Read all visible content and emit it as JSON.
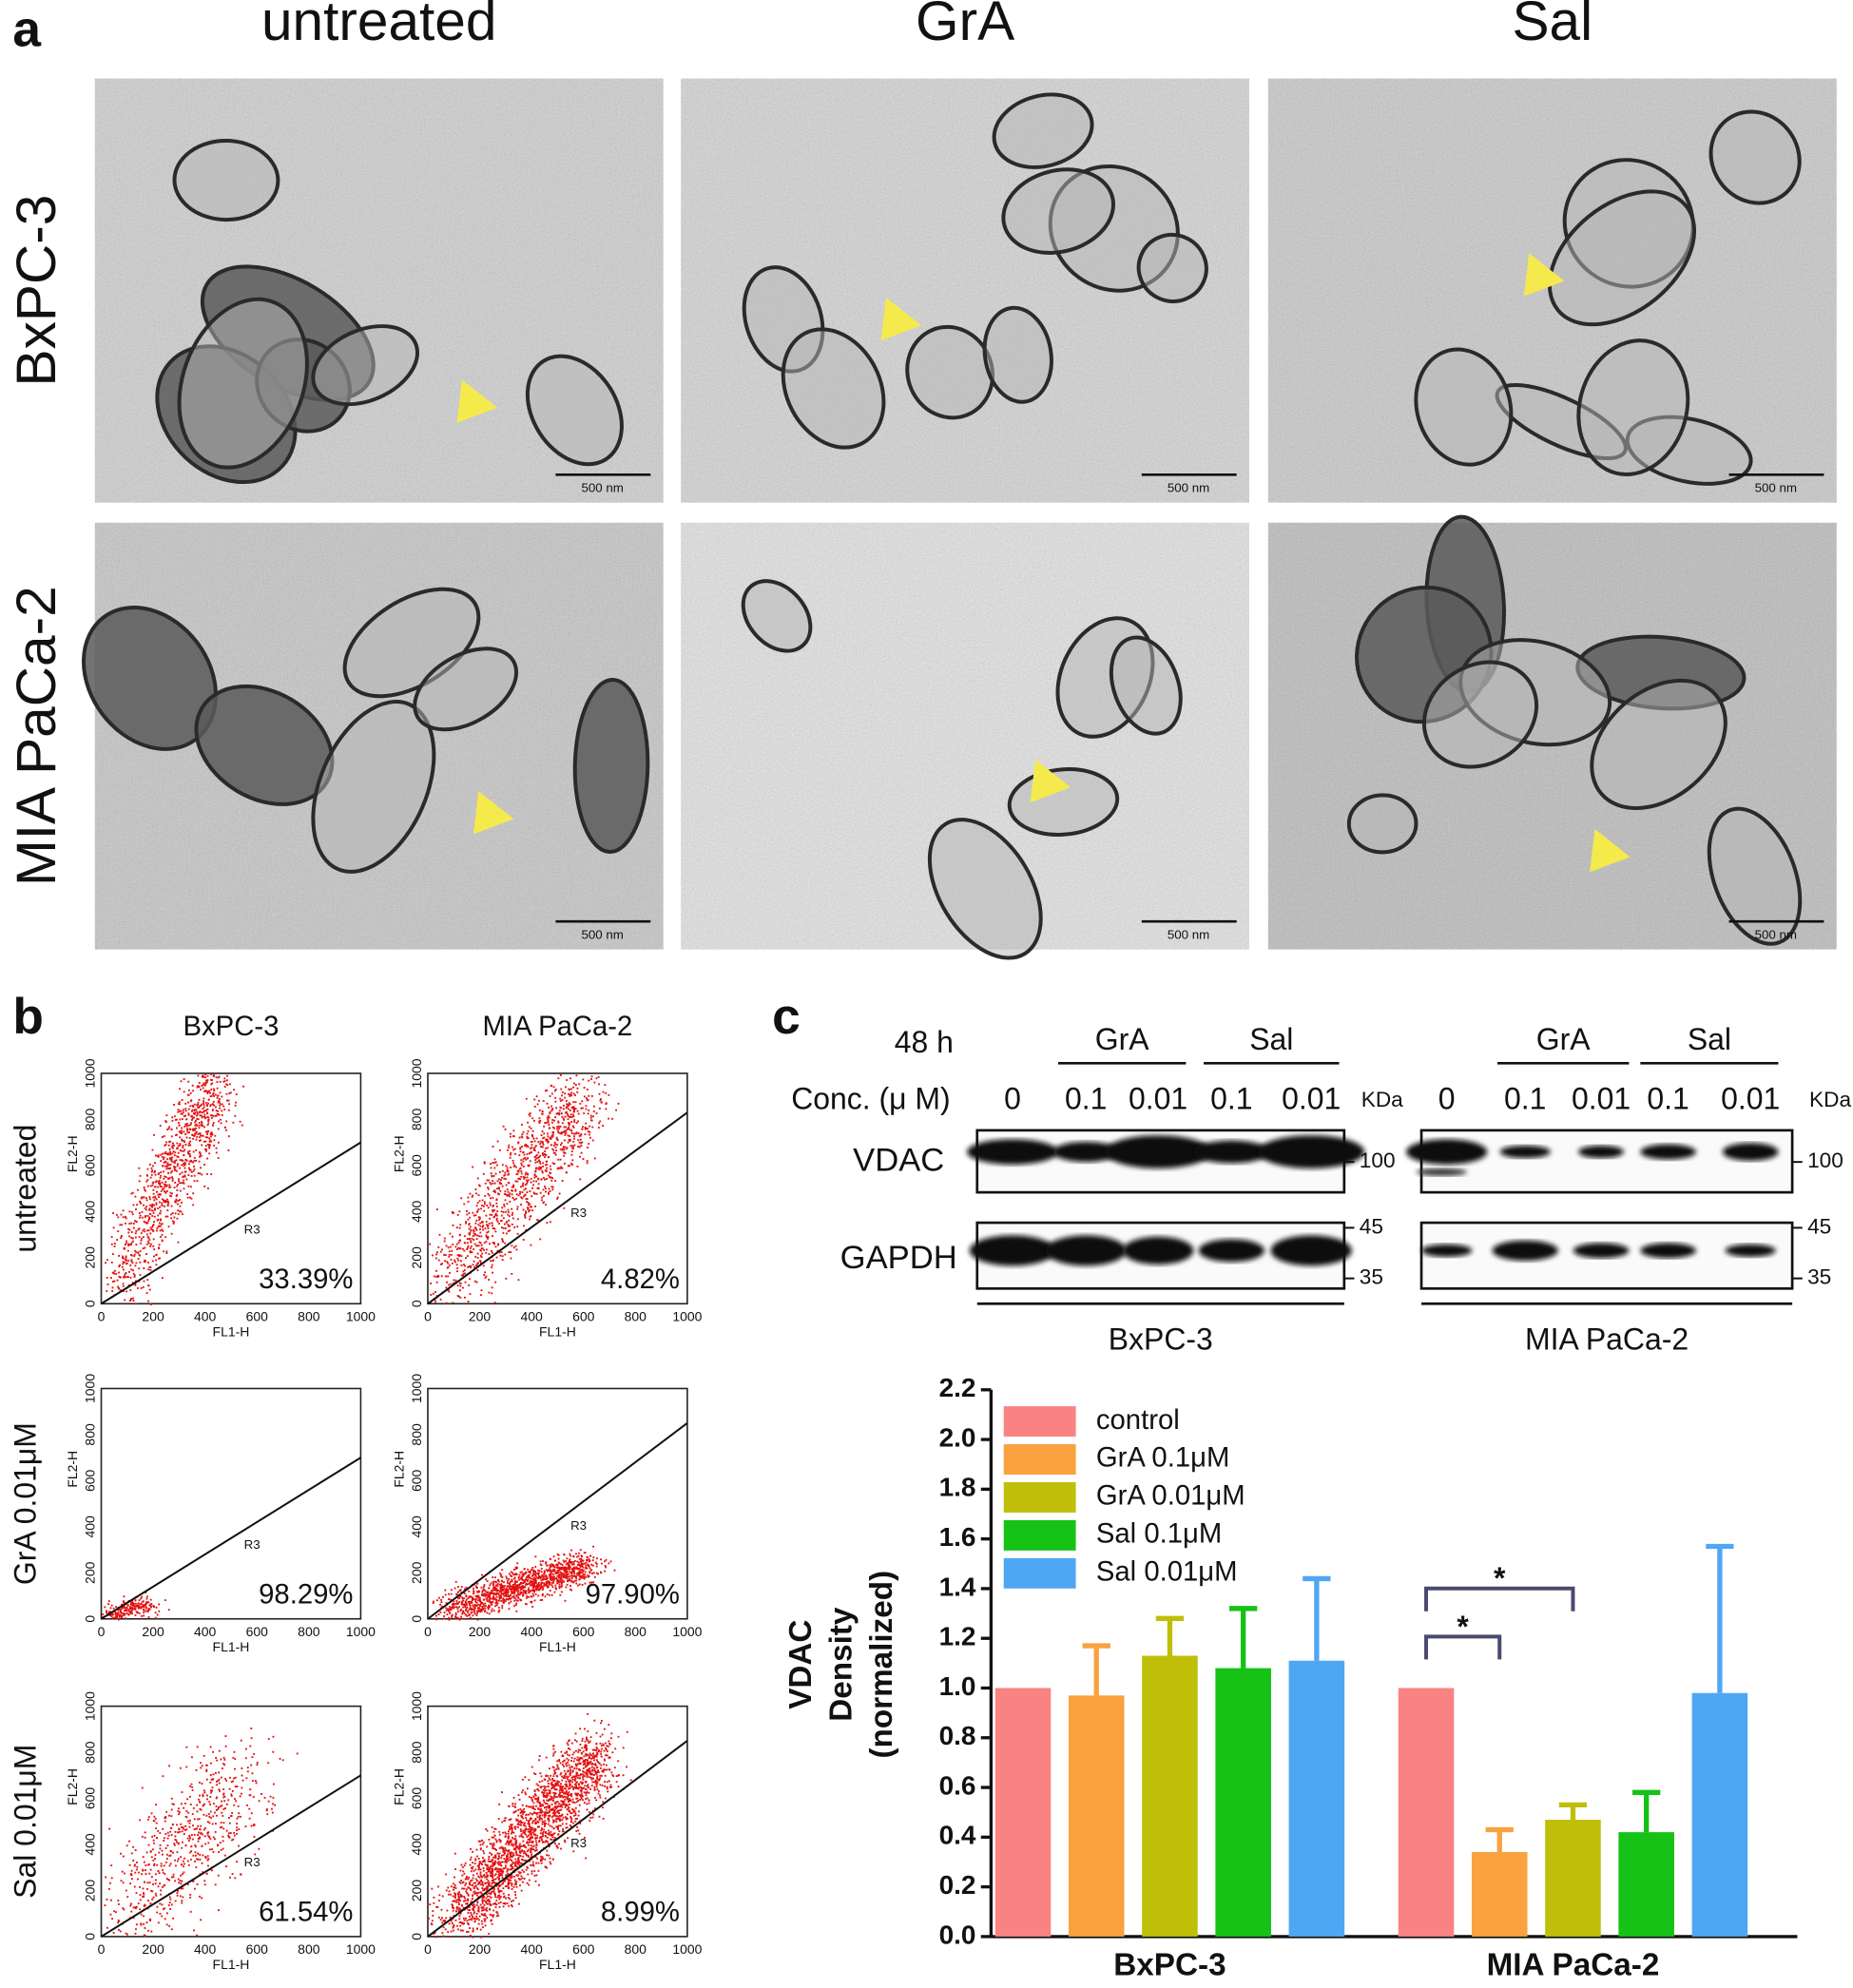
{
  "panel_labels": [
    "a",
    "b",
    "c"
  ],
  "em": {
    "columns": [
      "untreated",
      "GrA",
      "Sal"
    ],
    "rows": [
      "BxPC-3",
      "MIA PaCa-2"
    ],
    "scale_bar": "500 nm"
  },
  "flow": {
    "columns": [
      "BxPC-3",
      "MIA PaCa-2"
    ],
    "rows": [
      "untreated",
      "GrA 0.01μM",
      "Sal 0.01μM"
    ],
    "percentages": [
      [
        "33.39%",
        "4.82%"
      ],
      [
        "98.29%",
        "97.90%"
      ],
      [
        "61.54%",
        "8.99%"
      ]
    ],
    "xlabel": "FL1-H",
    "ylabel": "FL2-H",
    "gate": "R3",
    "xticks": [
      0,
      200,
      400,
      600,
      800,
      1000
    ],
    "yticks": [
      0,
      200,
      400,
      600,
      800,
      1000
    ]
  },
  "blot": {
    "time": "48 h",
    "conc_label": "Conc. (μ M)",
    "treatments": [
      "GrA",
      "Sal"
    ],
    "conc": [
      0,
      0.1,
      0.01,
      0.1,
      0.01
    ],
    "unit": "KDa",
    "proteins": [
      "VDAC",
      "GAPDH"
    ],
    "markers": [
      100,
      45,
      35
    ],
    "cell_lines": [
      "BxPC-3",
      "MIA PaCa-2"
    ]
  },
  "chart_data": {
    "type": "bar",
    "categories": [
      "BxPC-3",
      "MIA PaCa-2"
    ],
    "ylabel": [
      "VDAC",
      "Density",
      "(normalized)"
    ],
    "ylim": [
      0,
      2.2
    ],
    "yticks": [
      {
        "value": 0,
        "label": "0.0"
      },
      0.2,
      0.4,
      0.6,
      0.8,
      {
        "value": 1,
        "label": "1.0"
      },
      1.2,
      1.4,
      1.6,
      1.8,
      {
        "value": 2,
        "label": "2.0"
      },
      2.2
    ],
    "series": [
      {
        "name": "control",
        "color": "#f98383",
        "values": [
          1.0,
          1.0
        ],
        "errors": [
          null,
          null
        ]
      },
      {
        "name": "GrA 0.1μM",
        "color": "#f9a23f",
        "values": [
          0.97,
          0.34
        ],
        "errors": [
          0.2,
          0.09
        ]
      },
      {
        "name": "GrA 0.01μM",
        "color": "#bfbf0a",
        "values": [
          1.13,
          0.47
        ],
        "errors": [
          0.15,
          0.06
        ]
      },
      {
        "name": "Sal 0.1μM",
        "color": "#16c216",
        "values": [
          1.08,
          0.42
        ],
        "errors": [
          0.24,
          0.16
        ]
      },
      {
        "name": "Sal 0.01μM",
        "color": "#4fa7f3",
        "values": [
          1.11,
          0.98
        ],
        "errors": [
          0.33,
          0.59
        ]
      }
    ],
    "annotations": [
      {
        "text": "*",
        "category": "MIA PaCa-2",
        "between": [
          "control",
          "GrA 0.1μM"
        ]
      },
      {
        "text": "*",
        "category": "MIA PaCa-2",
        "between": [
          "control",
          "GrA 0.01μM"
        ]
      }
    ],
    "legend": "upper left"
  }
}
